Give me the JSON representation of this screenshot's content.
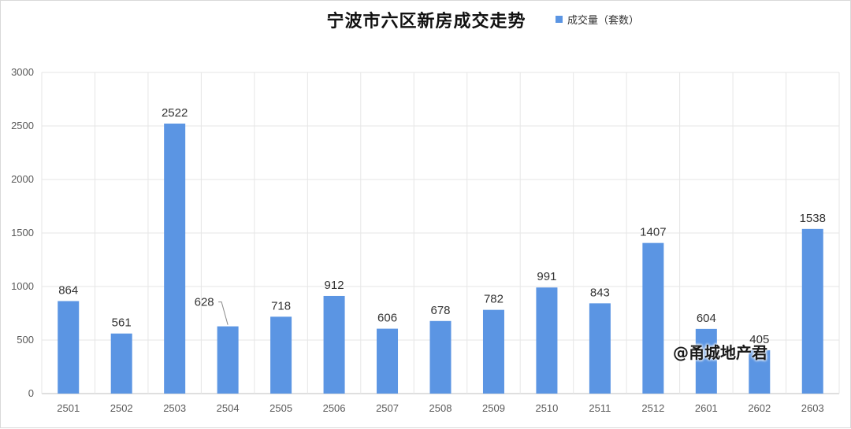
{
  "chart_data": {
    "type": "bar",
    "title": "宁波市六区新房成交走势",
    "categories": [
      "2501",
      "2502",
      "2503",
      "2504",
      "2505",
      "2506",
      "2507",
      "2508",
      "2509",
      "2510",
      "2511",
      "2512",
      "2601",
      "2602",
      "2603"
    ],
    "series": [
      {
        "name": "成交量（套数）",
        "values": [
          864,
          561,
          2522,
          628,
          718,
          912,
          606,
          678,
          782,
          991,
          843,
          1407,
          604,
          405,
          1538
        ]
      }
    ],
    "ylim": [
      0,
      3000
    ],
    "yticks": [
      0,
      500,
      1000,
      1500,
      2000,
      2500,
      3000
    ],
    "grid": true,
    "legend_position": "top-right",
    "bar_color": "#5b95e3",
    "annotation": "@甬城地产君"
  }
}
